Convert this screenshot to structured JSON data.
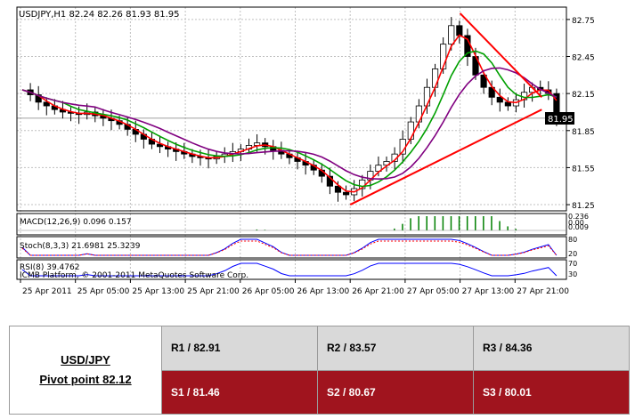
{
  "chart": {
    "title": "USDJPY,H1  82.24 82.26 81.93 81.95",
    "current_price": "81.95",
    "price_axis_labels": [
      "82.75",
      "82.45",
      "82.15",
      "81.85",
      "81.55",
      "81.25"
    ],
    "time_axis_labels": [
      "25 Apr 2011",
      "25 Apr 05:00",
      "25 Apr 13:00",
      "25 Apr 21:00",
      "26 Apr 05:00",
      "26 Apr 13:00",
      "26 Apr 21:00",
      "27 Apr 05:00",
      "27 Apr 13:00",
      "27 Apr 21:00"
    ],
    "macd_label": "MACD(12,26,9) 0.096 0.157",
    "macd_axis_labels": [
      "0.236",
      "0.00",
      "0.009"
    ],
    "stoch_label": "Stoch(8,3,3) 21.6981 25.3239",
    "stoch_axis_labels": [
      "80",
      "20"
    ],
    "rsi_label": "RSI(8) 39.4762",
    "rsi_axis_labels": [
      "70",
      "30"
    ],
    "copyright": "ICMB Platform, © 2001-2011 MetaQuotes Software Corp.",
    "colors": {
      "trendline": "#ff0000",
      "ma_fast": "#ff0000",
      "ma_mid": "#00a000",
      "ma_slow": "#800080",
      "bull": "#ffffff",
      "bear": "#000000"
    }
  },
  "chart_data": {
    "type": "candlestick",
    "title": "USDJPY,H1",
    "ohlc_last": {
      "open": 82.24,
      "high": 82.26,
      "low": 81.93,
      "close": 81.95
    },
    "ylim": [
      81.2,
      82.85
    ],
    "x_ticks": [
      "25 Apr 2011",
      "25 Apr 05:00",
      "25 Apr 13:00",
      "25 Apr 21:00",
      "26 Apr 05:00",
      "26 Apr 13:00",
      "26 Apr 21:00",
      "27 Apr 05:00",
      "27 Apr 13:00",
      "27 Apr 21:00"
    ],
    "y_ticks": [
      82.75,
      82.45,
      82.15,
      81.85,
      81.55,
      81.25
    ],
    "closes": [
      82.18,
      82.14,
      82.08,
      82.05,
      82.02,
      82.0,
      81.99,
      81.98,
      82.0,
      81.97,
      81.95,
      81.93,
      81.9,
      81.86,
      81.82,
      81.78,
      81.74,
      81.72,
      81.7,
      81.68,
      81.66,
      81.64,
      81.63,
      81.62,
      81.64,
      81.66,
      81.68,
      81.7,
      81.73,
      81.75,
      81.72,
      81.69,
      81.66,
      81.63,
      81.6,
      81.57,
      81.53,
      81.48,
      81.4,
      81.35,
      81.33,
      81.38,
      81.45,
      81.52,
      81.57,
      81.6,
      81.66,
      81.78,
      81.92,
      82.05,
      82.2,
      82.35,
      82.55,
      82.7,
      82.62,
      82.45,
      82.3,
      82.2,
      82.12,
      82.08,
      82.05,
      82.1,
      82.16,
      82.2,
      82.18,
      82.15,
      81.95
    ],
    "trendlines": [
      {
        "name": "resistance",
        "from": [
          "27 Apr 13:00",
          82.8
        ],
        "to": [
          "27 Apr 21:00",
          82.12
        ]
      },
      {
        "name": "support",
        "from": [
          "26 Apr 21:00",
          81.25
        ],
        "to": [
          "27 Apr 21:00",
          82.02
        ]
      }
    ],
    "indicators": {
      "macd": {
        "label": "MACD(12,26,9)",
        "main": 0.096,
        "signal": 0.157
      },
      "stoch": {
        "label": "Stoch(8,3,3)",
        "k": 21.6981,
        "d": 25.3239
      },
      "rsi": {
        "label": "RSI(8)",
        "value": 39.4762
      }
    }
  },
  "pivot_table": {
    "pair": "USD/JPY",
    "pivot": "Pivot point 82.12",
    "resistance": [
      "R1 / 82.91",
      "R2 / 83.57",
      "R3 / 84.36"
    ],
    "support": [
      "S1 / 81.46",
      "S2 / 80.67",
      "S3 / 80.01"
    ]
  }
}
